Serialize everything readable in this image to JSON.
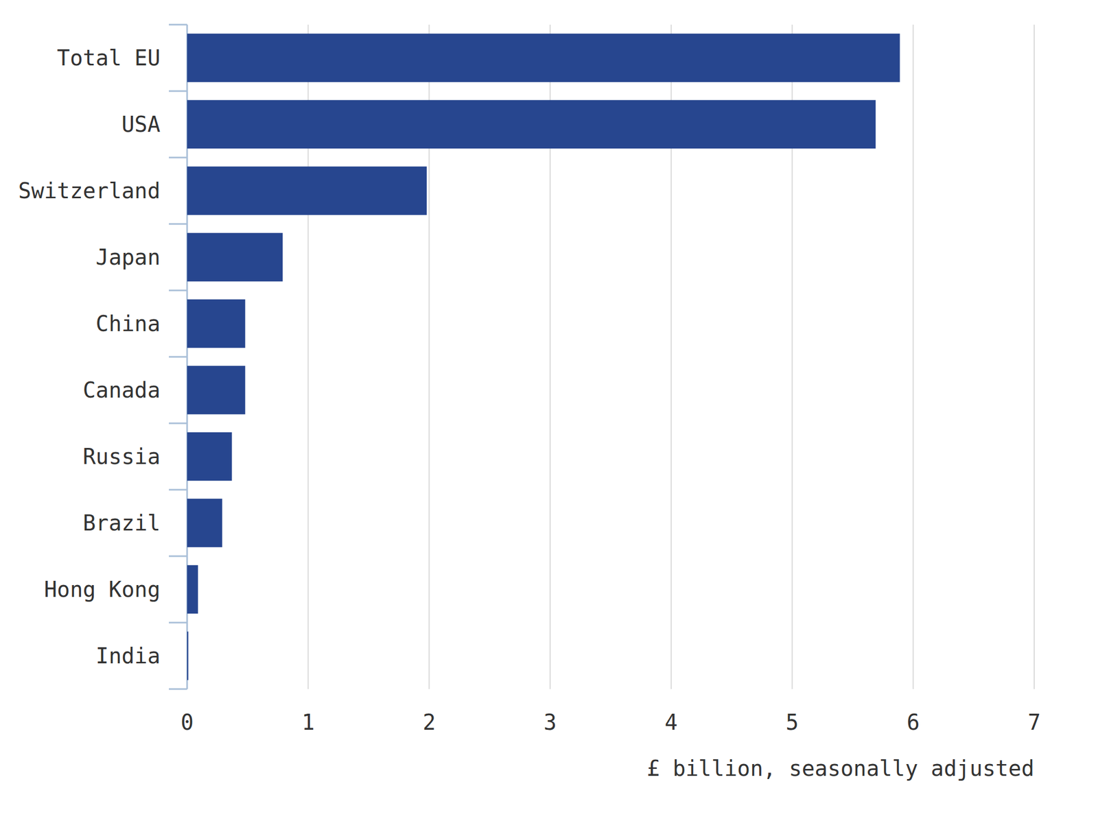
{
  "chart_data": {
    "type": "bar",
    "orientation": "horizontal",
    "categories": [
      "Total EU",
      "USA",
      "Switzerland",
      "Japan",
      "China",
      "Canada",
      "Russia",
      "Brazil",
      "Hong Kong",
      "India"
    ],
    "values": [
      5.89,
      5.69,
      1.98,
      0.79,
      0.48,
      0.48,
      0.37,
      0.29,
      0.09,
      0.01
    ],
    "color": "#27468f",
    "xlabel": "£ billion, seasonally adjusted",
    "xlim": [
      0,
      7
    ],
    "xticks": [
      0,
      1,
      2,
      3,
      4,
      5,
      6,
      7
    ],
    "grid": true
  }
}
